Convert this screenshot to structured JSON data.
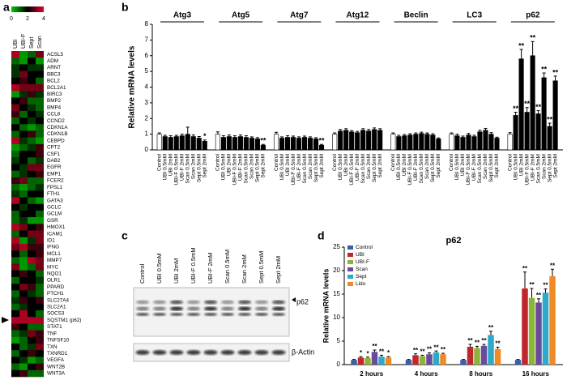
{
  "chart_data": [
    {
      "type": "heatmap",
      "panel": "a",
      "columns": [
        "UBI",
        "UBI-F",
        "Sept",
        "Scan"
      ],
      "rows": [
        "ACSL5",
        "ADM",
        "ARNT",
        "BBC3",
        "BCL2",
        "BCL2A1",
        "BIRC3",
        "BMP2",
        "BMP4",
        "CCL8",
        "CCND2",
        "CDKN1A",
        "CDKN1B",
        "CEBPD",
        "CPT2",
        "CSF1",
        "DAB2",
        "EGFR",
        "EMP1",
        "FCER2",
        "FPSL1",
        "FTH1",
        "GATA3",
        "GCLC",
        "GCLM",
        "GSR",
        "HMOX1",
        "ICAM1",
        "ID1",
        "IFNG",
        "MCL1",
        "MMP7",
        "MYC",
        "NQO1",
        "OLR1",
        "PPARD",
        "PTCH1",
        "SLC27A4",
        "SLC2A1",
        "SOCS3",
        "SQSTM1 (p62)",
        "STAT1",
        "TNF",
        "TNFSF10",
        "TXN",
        "TXNRD1",
        "VEGFA",
        "WNT2B",
        "WNT3A"
      ],
      "values": [
        [
          3.5,
          0.5,
          1,
          3
        ],
        [
          1,
          0.5,
          2,
          0.5
        ],
        [
          1.5,
          2,
          1.5,
          1.5
        ],
        [
          1.5,
          3,
          2,
          2
        ],
        [
          2,
          2.5,
          2,
          1
        ],
        [
          3.5,
          3,
          3,
          3
        ],
        [
          0.5,
          1.5,
          2.5,
          1.5
        ],
        [
          2,
          2.5,
          1,
          1
        ],
        [
          3,
          2,
          1.5,
          1
        ],
        [
          2.5,
          1,
          2,
          1.5
        ],
        [
          1,
          2,
          1.5,
          2
        ],
        [
          2,
          1,
          0.5,
          1
        ],
        [
          1,
          2,
          2.5,
          1
        ],
        [
          3.5,
          1.5,
          1,
          0.5
        ],
        [
          0.5,
          1,
          1.5,
          2.5
        ],
        [
          1,
          2,
          2,
          2.5
        ],
        [
          1.5,
          2,
          1,
          1.5
        ],
        [
          2,
          1.5,
          3,
          3
        ],
        [
          1,
          1.5,
          2,
          2.5
        ],
        [
          2.5,
          3,
          1,
          1
        ],
        [
          1,
          0.5,
          1,
          1.5
        ],
        [
          1.5,
          1,
          2,
          2
        ],
        [
          3.5,
          2,
          1,
          0.5
        ],
        [
          2,
          1.5,
          2,
          2
        ],
        [
          1,
          2,
          2,
          1
        ],
        [
          1,
          1.5,
          0.5,
          0.5
        ],
        [
          3.5,
          3,
          2,
          2.5
        ],
        [
          1,
          2,
          3,
          3
        ],
        [
          3.5,
          0.5,
          1.5,
          3
        ],
        [
          3,
          3.5,
          2.5,
          2.5
        ],
        [
          2,
          1,
          2,
          2.5
        ],
        [
          1,
          0.5,
          3.5,
          3
        ],
        [
          3,
          0.5,
          1,
          3
        ],
        [
          2,
          2.5,
          2,
          1
        ],
        [
          1,
          2,
          2,
          1.5
        ],
        [
          2,
          3,
          2.5,
          1
        ],
        [
          1,
          2,
          1.5,
          1
        ],
        [
          1.5,
          2.5,
          2,
          2.5
        ],
        [
          1,
          1.5,
          2,
          2
        ],
        [
          2,
          3.5,
          2,
          1
        ],
        [
          3.5,
          3.5,
          3.5,
          3.5
        ],
        [
          2.5,
          2,
          1,
          1
        ],
        [
          1,
          1.5,
          3,
          2.5
        ],
        [
          0.5,
          1,
          2,
          2.5
        ],
        [
          2,
          1,
          1.5,
          3
        ],
        [
          1,
          2,
          2.5,
          2
        ],
        [
          2,
          1.5,
          0.5,
          1
        ],
        [
          1,
          0.5,
          2,
          2.5
        ],
        [
          2,
          2.5,
          1,
          1
        ]
      ],
      "clim": [
        0,
        4
      ],
      "colorbar_ticks": [
        0,
        2,
        4
      ],
      "colors": [
        "#00c800",
        "#000000",
        "#e8002a"
      ]
    },
    {
      "type": "faceted-bar",
      "panel": "b",
      "y_label": "Relative mRNA levels",
      "categories": [
        "Control",
        "UBI 0.5mM",
        "UBI 2mM",
        "UBI-F 0.5mM",
        "UBI-F 2mM",
        "Scan 0.5mM",
        "Scan 2mM",
        "Sept 0.5mM",
        "Sept 2mM"
      ],
      "colors": [
        "#ffffff",
        "#000000",
        "#000000",
        "#000000",
        "#000000",
        "#000000",
        "#000000",
        "#000000",
        "#000000"
      ],
      "ylim": [
        0,
        8
      ],
      "yticks": [
        0,
        1,
        2,
        3,
        4,
        5,
        6,
        7,
        8
      ],
      "groups": [
        {
          "name": "Atg3",
          "values": [
            1,
            0.85,
            0.8,
            0.85,
            0.9,
            1.0,
            0.85,
            0.75,
            0.55
          ],
          "errors": [
            0.08,
            0.08,
            0.1,
            0.08,
            0.1,
            0.45,
            0.1,
            0.1,
            0.08
          ],
          "significance": [
            null,
            null,
            null,
            null,
            null,
            null,
            null,
            null,
            "*"
          ]
        },
        {
          "name": "Atg5",
          "values": [
            1,
            0.8,
            0.85,
            0.8,
            0.85,
            0.8,
            0.75,
            0.7,
            0.3
          ],
          "errors": [
            0.15,
            0.1,
            0.1,
            0.1,
            0.1,
            0.1,
            0.08,
            0.08,
            0.05
          ],
          "significance": [
            null,
            null,
            null,
            null,
            null,
            null,
            null,
            null,
            "**"
          ]
        },
        {
          "name": "Atg7",
          "values": [
            1,
            0.75,
            0.8,
            0.8,
            0.75,
            0.8,
            0.75,
            0.7,
            0.3
          ],
          "errors": [
            0.12,
            0.08,
            0.1,
            0.08,
            0.08,
            0.08,
            0.08,
            0.08,
            0.05
          ],
          "significance": [
            null,
            null,
            null,
            null,
            null,
            null,
            null,
            null,
            "**"
          ]
        },
        {
          "name": "Atg12",
          "values": [
            1,
            1.2,
            1.25,
            1.15,
            1.1,
            1.25,
            1.2,
            1.3,
            1.25
          ],
          "errors": [
            0.08,
            0.1,
            0.1,
            0.08,
            0.08,
            0.1,
            0.1,
            0.1,
            0.1
          ],
          "significance": [
            null,
            null,
            null,
            null,
            null,
            null,
            null,
            null,
            null
          ]
        },
        {
          "name": "Beclin",
          "values": [
            1,
            0.85,
            0.9,
            0.95,
            1.0,
            1.05,
            1.0,
            0.95,
            0.7
          ],
          "errors": [
            0.08,
            0.08,
            0.08,
            0.08,
            0.08,
            0.08,
            0.08,
            0.08,
            0.06
          ],
          "significance": [
            null,
            null,
            null,
            null,
            null,
            null,
            null,
            null,
            null
          ]
        },
        {
          "name": "LC3",
          "values": [
            1,
            0.9,
            0.8,
            0.95,
            0.85,
            1.15,
            1.25,
            1.0,
            0.75
          ],
          "errors": [
            0.08,
            0.1,
            0.08,
            0.1,
            0.08,
            0.1,
            0.12,
            0.1,
            0.06
          ],
          "significance": [
            null,
            null,
            null,
            null,
            null,
            null,
            null,
            null,
            null
          ]
        },
        {
          "name": "p62",
          "values": [
            1,
            2.2,
            5.8,
            2.4,
            6.0,
            2.3,
            4.6,
            1.5,
            4.4
          ],
          "errors": [
            0.1,
            0.2,
            0.6,
            0.3,
            0.9,
            0.2,
            0.3,
            0.2,
            0.3
          ],
          "significance": [
            null,
            "**",
            "**",
            "**",
            "**",
            "**",
            "**",
            "**",
            "**"
          ]
        }
      ]
    },
    {
      "type": "bar",
      "panel": "d",
      "title": "p62",
      "y_label": "Relative mRNA levels",
      "legend": "top-left",
      "categories": [
        "2 hours",
        "4 hours",
        "8 hours",
        "16 hours"
      ],
      "ylim": [
        0,
        25
      ],
      "yticks": [
        0,
        5,
        10,
        15,
        20,
        25
      ],
      "series": [
        {
          "name": "Control",
          "color": "#3a5fa8",
          "values": [
            1,
            1,
            1,
            1
          ],
          "errors": [
            0.1,
            0.1,
            0.1,
            0.1
          ],
          "significance": [
            null,
            null,
            null,
            null
          ]
        },
        {
          "name": "UBI",
          "color": "#c0272d",
          "values": [
            1.5,
            2,
            3.8,
            16.2
          ],
          "errors": [
            0.2,
            0.3,
            0.5,
            3.5
          ],
          "significance": [
            "*",
            "**",
            "**",
            "**"
          ]
        },
        {
          "name": "UBI-F",
          "color": "#8db33a",
          "values": [
            1.4,
            1.8,
            3.5,
            14.2
          ],
          "errors": [
            0.2,
            0.2,
            0.4,
            2
          ],
          "significance": [
            "*",
            "**",
            "**",
            "**"
          ]
        },
        {
          "name": "Scan",
          "color": "#6a4a9a",
          "values": [
            2.7,
            2.2,
            4,
            13.2
          ],
          "errors": [
            0.4,
            0.3,
            0.3,
            0.8
          ],
          "significance": [
            "**",
            "**",
            "**",
            "**"
          ]
        },
        {
          "name": "Sept",
          "color": "#2fa9c9",
          "values": [
            1.7,
            2.6,
            6.3,
            15.3
          ],
          "errors": [
            0.3,
            0.3,
            0.8,
            0.8
          ],
          "significance": [
            "**",
            "**",
            "**",
            "**"
          ]
        },
        {
          "name": "Lido",
          "color": "#f08a24",
          "values": [
            1.5,
            2.2,
            3.3,
            18.8
          ],
          "errors": [
            0.2,
            0.2,
            0.4,
            1.5
          ],
          "significance": [
            "*",
            "**",
            "**",
            "**"
          ]
        }
      ]
    }
  ],
  "blot": {
    "panel": "c",
    "lanes": [
      "Control",
      "UBI 0.5mM",
      "UBI 2mM",
      "UBI-F 0.5mM",
      "UBI-F 2mM",
      "Scan 0.5mM",
      "Scan 2mM",
      "Sept 0.5mM",
      "Sept 2mM"
    ],
    "bands": [
      "p62",
      "β-Actin"
    ]
  }
}
